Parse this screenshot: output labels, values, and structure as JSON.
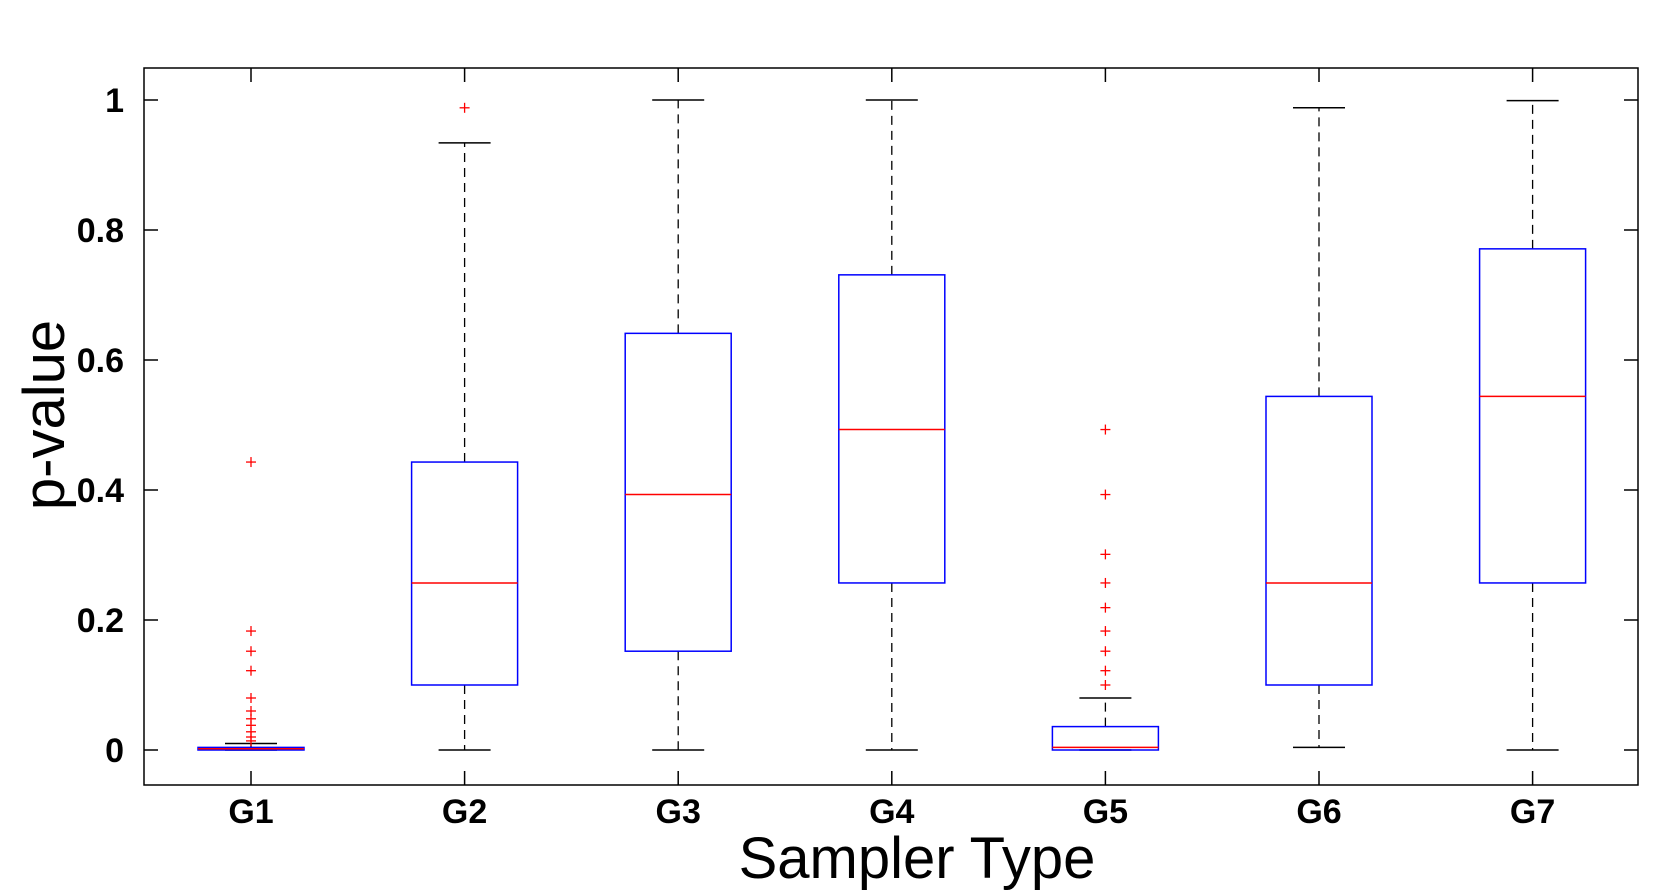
{
  "chart_data": {
    "type": "boxplot",
    "title": "",
    "xlabel": "Sampler Type",
    "ylabel": "p-value",
    "ylim": [
      -0.052,
      1.05
    ],
    "yticks": [
      "0",
      "0.2",
      "0.4",
      "0.6",
      "0.8",
      "1"
    ],
    "ytick_values": [
      0,
      0.2,
      0.4,
      0.6,
      0.8,
      1
    ],
    "categories": [
      "G1",
      "G2",
      "G3",
      "G4",
      "G5",
      "G6",
      "G7"
    ],
    "boxes": [
      {
        "name": "G1",
        "whisker_low": 0,
        "q1": 0,
        "median": 0.002,
        "q3": 0.004,
        "whisker_high": 0.01,
        "outliers": [
          0.443,
          0.183,
          0.152,
          0.122,
          0.08,
          0.06,
          0.048,
          0.038,
          0.028,
          0.02,
          0.014
        ]
      },
      {
        "name": "G2",
        "whisker_low": 0,
        "q1": 0.1,
        "median": 0.257,
        "q3": 0.443,
        "whisker_high": 0.934,
        "outliers": [
          0.988
        ]
      },
      {
        "name": "G3",
        "whisker_low": 0,
        "q1": 0.152,
        "median": 0.393,
        "q3": 0.641,
        "whisker_high": 1.0,
        "outliers": []
      },
      {
        "name": "G4",
        "whisker_low": 0,
        "q1": 0.257,
        "median": 0.493,
        "q3": 0.731,
        "whisker_high": 1.0,
        "outliers": []
      },
      {
        "name": "G5",
        "whisker_low": 0,
        "q1": 0,
        "median": 0.004,
        "q3": 0.036,
        "whisker_high": 0.08,
        "outliers": [
          0.493,
          0.393,
          0.301,
          0.257,
          0.219,
          0.183,
          0.152,
          0.122,
          0.1
        ]
      },
      {
        "name": "G6",
        "whisker_low": 0.004,
        "q1": 0.1,
        "median": 0.257,
        "q3": 0.544,
        "whisker_high": 0.988,
        "outliers": []
      },
      {
        "name": "G7",
        "whisker_low": 0,
        "q1": 0.257,
        "median": 0.544,
        "q3": 0.771,
        "whisker_high": 0.999,
        "outliers": []
      }
    ],
    "grid": false,
    "colors": {
      "box": "#0000ff",
      "median": "#ff0000",
      "whisker": "#000000",
      "outlier": "#ff0000",
      "axes": "#000000"
    }
  }
}
